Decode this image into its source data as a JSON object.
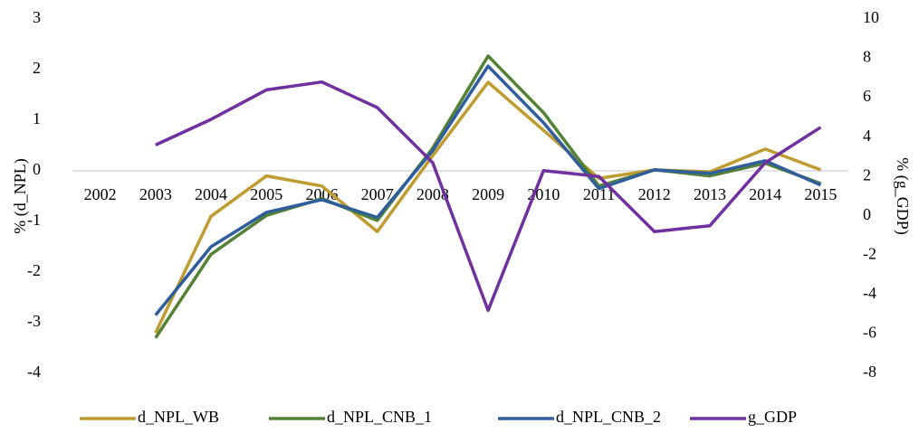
{
  "chart_data": {
    "type": "line",
    "categories": [
      "2002",
      "2003",
      "2004",
      "2005",
      "2006",
      "2007",
      "2008",
      "2009",
      "2010",
      "2011",
      "2012",
      "2013",
      "2014",
      "2015"
    ],
    "series": [
      {
        "name": "d_NPL_WB",
        "color": "#bf9b30",
        "values": [
          null,
          -3.2,
          -0.9,
          -0.1,
          -0.3,
          -1.2,
          0.3,
          1.75,
          0.8,
          -0.15,
          0.02,
          -0.02,
          0.43,
          0.02
        ]
      },
      {
        "name": "d_NPL_CNB_1",
        "color": "#548235",
        "values": [
          null,
          -3.3,
          -1.65,
          -0.88,
          -0.55,
          -0.98,
          0.45,
          2.27,
          1.15,
          -0.3,
          0.02,
          -0.1,
          0.15,
          -0.25
        ]
      },
      {
        "name": "d_NPL_CNB_2",
        "color": "#2e5e9e",
        "values": [
          null,
          -2.85,
          -1.5,
          -0.82,
          -0.57,
          -0.92,
          0.4,
          2.07,
          0.95,
          -0.35,
          0.02,
          -0.05,
          0.2,
          -0.28
        ]
      },
      {
        "name": "g_GDP",
        "color": "#7030a0",
        "axis": "y2",
        "values": [
          null,
          3.6,
          4.9,
          6.4,
          6.8,
          5.5,
          2.7,
          -4.8,
          2.3,
          2.0,
          -0.8,
          -0.5,
          2.7,
          4.5
        ]
      }
    ],
    "ylabel": "% (d_NPL)",
    "y2label": "% (g_GDP)",
    "ylim": [
      -4,
      3
    ],
    "yticks": [
      -4,
      -3,
      -2,
      -1,
      0,
      1,
      2,
      3
    ],
    "y2lim": [
      -8,
      10
    ],
    "y2ticks": [
      -8,
      -6,
      -4,
      -2,
      0,
      2,
      4,
      6,
      8,
      10
    ],
    "grid": false,
    "legend": "bottom"
  }
}
